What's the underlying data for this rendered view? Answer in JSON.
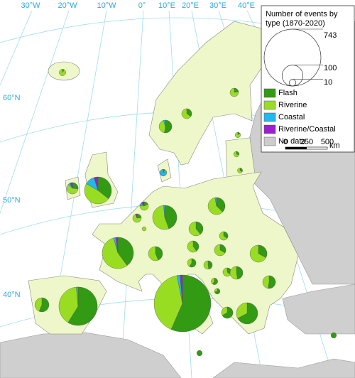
{
  "chart_data": {
    "type": "pie-map",
    "longitude_labels": [
      "30°W",
      "20°W",
      "10°W",
      "0°",
      "10°E",
      "20°E",
      "30°E",
      "40°E"
    ],
    "latitude_labels": [
      "60°N",
      "50°N",
      "40°N"
    ],
    "size_legend": {
      "title": "Number of events by type (1870-2020)",
      "values": [
        743,
        100,
        10
      ]
    },
    "series": [
      {
        "name": "Flash",
        "color": "#339a14",
        "values": [
          1,
          8,
          20,
          4,
          1,
          2,
          2,
          1,
          60,
          8,
          3,
          4,
          0,
          60,
          25,
          18,
          6,
          12,
          20,
          90,
          10,
          22,
          10,
          8,
          6,
          20,
          18,
          6,
          70,
          420,
          200,
          26,
          7,
          7,
          5,
          20
        ]
      },
      {
        "name": "Riverine",
        "color": "#99dd22",
        "values": [
          9,
          15,
          16,
          13,
          6,
          5,
          4,
          1,
          80,
          18,
          10,
          12,
          4,
          73,
          40,
          28,
          11,
          18,
          26,
          125,
          20,
          45,
          7,
          9,
          11,
          18,
          20,
          4,
          34,
          300,
          135,
          20,
          0,
          0,
          2,
          10
        ]
      },
      {
        "name": "Coastal",
        "color": "#22b8ec",
        "values": [
          0,
          0,
          2,
          0,
          0,
          0,
          0,
          9,
          20,
          2,
          2,
          0,
          0,
          2,
          2,
          0,
          0,
          0,
          0,
          5,
          0,
          0,
          0,
          0,
          0,
          0,
          0,
          0,
          0,
          13,
          5,
          0,
          0,
          0,
          0,
          0
        ]
      },
      {
        "name": "Riverine/Coastal",
        "color": "#9b1fd0",
        "values": [
          0,
          0,
          0,
          0,
          0,
          0,
          0,
          0,
          8,
          2,
          2,
          1,
          0,
          0,
          0,
          0,
          0,
          0,
          0,
          5,
          0,
          0,
          0,
          0,
          0,
          0,
          0,
          0,
          0,
          10,
          0,
          0,
          0,
          0,
          0,
          0
        ]
      }
    ],
    "no_data": {
      "name": "No data",
      "color": "#cccccc"
    },
    "scale_bar": {
      "ticks": [
        "0",
        "250",
        "500"
      ],
      "unit": "km"
    }
  }
}
